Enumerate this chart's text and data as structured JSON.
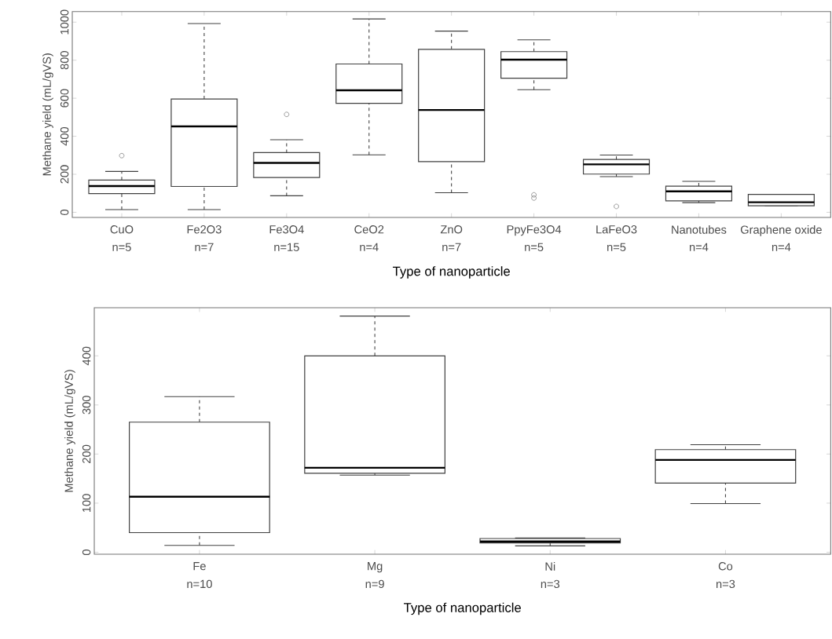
{
  "chart_data": [
    {
      "type": "box",
      "ylabel": "Methane yield (mL/gVS)",
      "xlabel": "Type of nanoparticle",
      "categories": [
        "CuO",
        "Fe2O3",
        "Fe3O4",
        "CeO2",
        "ZnO",
        "PpyFe3O4",
        "LaFeO3",
        "Nanotubes",
        "Graphene oxide"
      ],
      "boxes": [
        {
          "low": 14,
          "q1": 98,
          "median": 138,
          "q3": 170,
          "high": 215,
          "outliers": [
            298
          ]
        },
        {
          "low": 14,
          "q1": 136,
          "median": 452,
          "q3": 596,
          "high": 993
        },
        {
          "low": 87,
          "q1": 183,
          "median": 260,
          "q3": 314,
          "high": 382,
          "outliers": [
            515
          ]
        },
        {
          "low": 302,
          "q1": 573,
          "median": 642,
          "q3": 780,
          "high": 1017
        },
        {
          "low": 103,
          "q1": 267,
          "median": 538,
          "q3": 857,
          "high": 953
        },
        {
          "low": 645,
          "q1": 705,
          "median": 803,
          "q3": 845,
          "high": 907,
          "outliers": [
            75,
            92
          ]
        },
        {
          "low": 188,
          "q1": 201,
          "median": 252,
          "q3": 278,
          "high": 301,
          "outliers": [
            31
          ]
        },
        {
          "low": 51,
          "q1": 60,
          "median": 110,
          "q3": 138,
          "high": 163
        },
        {
          "low": 34,
          "q1": 34,
          "median": 53,
          "q3": 94,
          "high": 94
        }
      ],
      "ylim": [
        -27,
        1056
      ],
      "yticks": [
        0,
        200,
        400,
        600,
        800,
        1000
      ],
      "annotations": [
        "n=5",
        "n=7",
        "n=15",
        "n=4",
        "n=7",
        "n=5",
        "n=5",
        "n=4",
        "n=4"
      ]
    },
    {
      "type": "box",
      "ylabel": "Methane yield (mL/gVS)",
      "xlabel": "Type of nanoparticle",
      "categories": [
        "Fe",
        "Mg",
        "Ni",
        "Co"
      ],
      "boxes": [
        {
          "low": 14,
          "q1": 40,
          "median": 113,
          "q3": 265,
          "high": 317
        },
        {
          "low": 157,
          "q1": 161,
          "median": 172,
          "q3": 400,
          "high": 481
        },
        {
          "low": 13,
          "q1": 19,
          "median": 22,
          "q3": 28,
          "high": 29
        },
        {
          "low": 99,
          "q1": 141,
          "median": 188,
          "q3": 209,
          "high": 219
        }
      ],
      "ylim": [
        -4,
        498
      ],
      "yticks": [
        0,
        100,
        200,
        300,
        400
      ],
      "annotations": [
        "n=10",
        "n=9",
        "n=3",
        "n=3"
      ]
    }
  ]
}
